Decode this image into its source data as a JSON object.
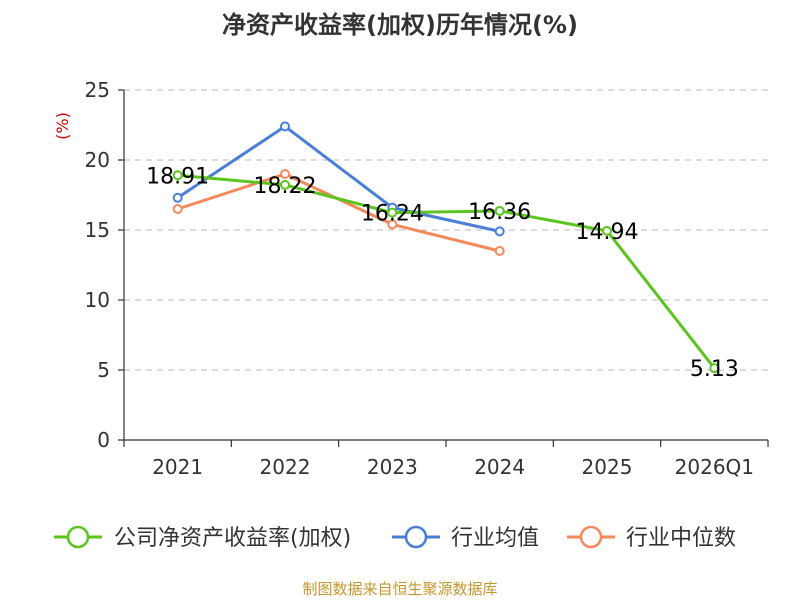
{
  "chart_data": {
    "type": "line",
    "title": "净资产收益率(加权)历年情况(%)",
    "ylabel": "(%)",
    "xlabel": "",
    "categories": [
      "2021",
      "2022",
      "2023",
      "2024",
      "2025",
      "2026Q1"
    ],
    "ylim": [
      0,
      25
    ],
    "yticks": [
      0,
      5,
      10,
      15,
      20,
      25
    ],
    "grid": true,
    "legend_position": "bottom",
    "series": [
      {
        "name": "公司净资产收益率(加权)",
        "color": "#5cc41e",
        "values": [
          18.91,
          18.22,
          16.24,
          16.36,
          14.94,
          5.13
        ],
        "labels": [
          "18.91",
          "18.22",
          "16.24",
          "16.36",
          "14.94",
          "5.13"
        ]
      },
      {
        "name": "行业均值",
        "color": "#4a7fd9",
        "values": [
          17.3,
          22.4,
          16.6,
          14.9,
          null,
          null
        ]
      },
      {
        "name": "行业中位数",
        "color": "#f5895a",
        "values": [
          16.5,
          19.0,
          15.4,
          13.5,
          null,
          null
        ]
      }
    ],
    "source": "制图数据来自恒生聚源数据库"
  }
}
